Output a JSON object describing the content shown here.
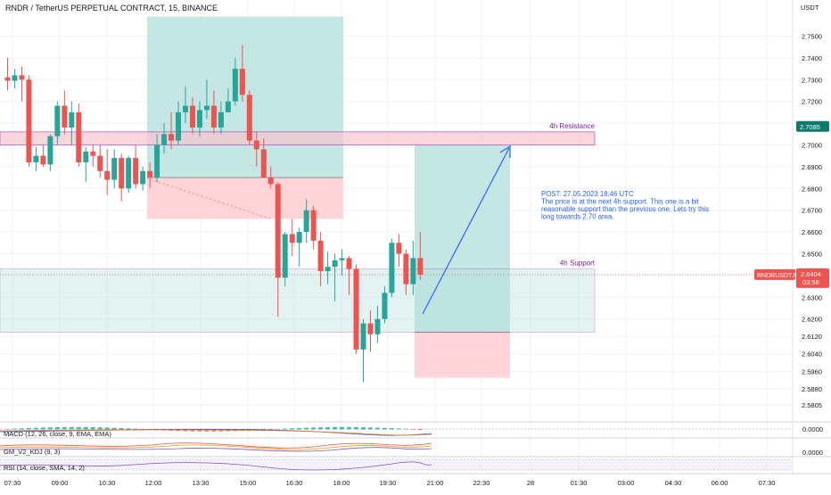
{
  "header": {
    "symbol": "RNDR / TetherUS PERPETUAL CONTRACT, 15, BINANCE"
  },
  "axis": {
    "currency": "USDT",
    "price_ticks": [
      "2.7500",
      "2.7400",
      "2.7300",
      "2.7200",
      "2.7100",
      "2.7000",
      "2.6900",
      "2.6800",
      "2.6700",
      "2.6600",
      "2.6500",
      "2.6400",
      "2.6300",
      "2.6200",
      "2.6120",
      "2.6040",
      "2.5960",
      "2.5880",
      "2.5805"
    ],
    "time_ticks": [
      "07:30",
      "09:00",
      "10:30",
      "12:00",
      "13:30",
      "15:00",
      "16:30",
      "18:00",
      "19:30",
      "21:00",
      "22:30",
      "28",
      "01:30",
      "03:00",
      "04:30",
      "06:00",
      "07:30"
    ]
  },
  "labels": {
    "resistance": "4h Resistance",
    "support": "4h Support",
    "resistance_price": "2.7085",
    "ticker_tag": "RNDRUSDT.P",
    "last_price": "2.6404",
    "countdown": "03:58",
    "post": [
      "POST: 27.05.2023 18:46 UTC",
      "The price is at the next 4h support. This one is a bit",
      "reasonable support than the previous one. Lets try this",
      "long towards 2.70 area."
    ]
  },
  "indicators": {
    "macd": {
      "label": "MACD (12, 26, close, 9, EMA, EMA)",
      "value": "0.0000"
    },
    "kdj": {
      "label": "GM_V2_KDJ (9, 3)",
      "value": "0.0000"
    },
    "rsi": {
      "label": "RSI (14, close, SMA, 14, 2)"
    }
  },
  "colors": {
    "up": "#26a69a",
    "down": "#ef5350",
    "zone_fill": "#f7c6cc",
    "zone_border": "#9c27b0",
    "profit": "#b2dfdb",
    "loss": "#ffcdd2",
    "arrow": "#2962ff"
  },
  "chart_data": {
    "type": "candlestick",
    "symbol": "RNDR / TetherUS PERPETUAL CONTRACT",
    "interval": "15",
    "ylim": [
      2.5805,
      2.76
    ],
    "zones": [
      {
        "name": "4h Resistance",
        "low": 2.7,
        "high": 2.706
      },
      {
        "name": "4h Support",
        "low": 2.614,
        "high": 2.643
      }
    ],
    "positions": [
      {
        "side": "long",
        "entry": 2.685,
        "target": 2.759,
        "stop": 2.666
      },
      {
        "side": "long",
        "entry": 2.614,
        "target": 2.7,
        "stop": 2.593
      }
    ],
    "last_price": 2.6404,
    "candles": [
      {
        "o": 2.731,
        "h": 2.74,
        "l": 2.725,
        "c": 2.7295
      },
      {
        "o": 2.7295,
        "h": 2.735,
        "l": 2.726,
        "c": 2.732
      },
      {
        "o": 2.732,
        "h": 2.736,
        "l": 2.72,
        "c": 2.73
      },
      {
        "o": 2.73,
        "h": 2.732,
        "l": 2.69,
        "c": 2.692
      },
      {
        "o": 2.692,
        "h": 2.699,
        "l": 2.688,
        "c": 2.695
      },
      {
        "o": 2.695,
        "h": 2.7,
        "l": 2.69,
        "c": 2.691
      },
      {
        "o": 2.691,
        "h": 2.705,
        "l": 2.688,
        "c": 2.704
      },
      {
        "o": 2.704,
        "h": 2.72,
        "l": 2.7,
        "c": 2.718
      },
      {
        "o": 2.718,
        "h": 2.725,
        "l": 2.705,
        "c": 2.708
      },
      {
        "o": 2.708,
        "h": 2.72,
        "l": 2.7,
        "c": 2.715
      },
      {
        "o": 2.715,
        "h": 2.719,
        "l": 2.69,
        "c": 2.692
      },
      {
        "o": 2.692,
        "h": 2.699,
        "l": 2.683,
        "c": 2.697
      },
      {
        "o": 2.697,
        "h": 2.7,
        "l": 2.69,
        "c": 2.695
      },
      {
        "o": 2.695,
        "h": 2.7,
        "l": 2.685,
        "c": 2.688
      },
      {
        "o": 2.688,
        "h": 2.698,
        "l": 2.677,
        "c": 2.684
      },
      {
        "o": 2.684,
        "h": 2.698,
        "l": 2.68,
        "c": 2.694
      },
      {
        "o": 2.694,
        "h": 2.696,
        "l": 2.674,
        "c": 2.68
      },
      {
        "o": 2.68,
        "h": 2.695,
        "l": 2.678,
        "c": 2.694
      },
      {
        "o": 2.694,
        "h": 2.7,
        "l": 2.68,
        "c": 2.682
      },
      {
        "o": 2.682,
        "h": 2.69,
        "l": 2.679,
        "c": 2.688
      },
      {
        "o": 2.688,
        "h": 2.692,
        "l": 2.68,
        "c": 2.685
      },
      {
        "o": 2.685,
        "h": 2.705,
        "l": 2.683,
        "c": 2.7
      },
      {
        "o": 2.7,
        "h": 2.71,
        "l": 2.696,
        "c": 2.705
      },
      {
        "o": 2.705,
        "h": 2.715,
        "l": 2.698,
        "c": 2.702
      },
      {
        "o": 2.702,
        "h": 2.72,
        "l": 2.7,
        "c": 2.715
      },
      {
        "o": 2.715,
        "h": 2.727,
        "l": 2.71,
        "c": 2.718
      },
      {
        "o": 2.718,
        "h": 2.722,
        "l": 2.705,
        "c": 2.708
      },
      {
        "o": 2.708,
        "h": 2.72,
        "l": 2.704,
        "c": 2.716
      },
      {
        "o": 2.716,
        "h": 2.73,
        "l": 2.712,
        "c": 2.718
      },
      {
        "o": 2.718,
        "h": 2.725,
        "l": 2.705,
        "c": 2.708
      },
      {
        "o": 2.708,
        "h": 2.72,
        "l": 2.705,
        "c": 2.715
      },
      {
        "o": 2.715,
        "h": 2.726,
        "l": 2.715,
        "c": 2.72
      },
      {
        "o": 2.72,
        "h": 2.74,
        "l": 2.718,
        "c": 2.735
      },
      {
        "o": 2.735,
        "h": 2.746,
        "l": 2.72,
        "c": 2.723
      },
      {
        "o": 2.723,
        "h": 2.725,
        "l": 2.7,
        "c": 2.702
      },
      {
        "o": 2.702,
        "h": 2.706,
        "l": 2.69,
        "c": 2.698
      },
      {
        "o": 2.698,
        "h": 2.703,
        "l": 2.685,
        "c": 2.685
      },
      {
        "o": 2.685,
        "h": 2.69,
        "l": 2.68,
        "c": 2.682
      },
      {
        "o": 2.682,
        "h": 2.683,
        "l": 2.621,
        "c": 2.639
      },
      {
        "o": 2.639,
        "h": 2.66,
        "l": 2.635,
        "c": 2.659
      },
      {
        "o": 2.659,
        "h": 2.666,
        "l": 2.649,
        "c": 2.655
      },
      {
        "o": 2.655,
        "h": 2.662,
        "l": 2.644,
        "c": 2.66
      },
      {
        "o": 2.66,
        "h": 2.675,
        "l": 2.655,
        "c": 2.67
      },
      {
        "o": 2.67,
        "h": 2.672,
        "l": 2.652,
        "c": 2.656
      },
      {
        "o": 2.656,
        "h": 2.66,
        "l": 2.635,
        "c": 2.642
      },
      {
        "o": 2.642,
        "h": 2.651,
        "l": 2.636,
        "c": 2.644
      },
      {
        "o": 2.644,
        "h": 2.65,
        "l": 2.628,
        "c": 2.647
      },
      {
        "o": 2.647,
        "h": 2.652,
        "l": 2.64,
        "c": 2.648
      },
      {
        "o": 2.648,
        "h": 2.649,
        "l": 2.631,
        "c": 2.643
      },
      {
        "o": 2.643,
        "h": 2.645,
        "l": 2.604,
        "c": 2.606
      },
      {
        "o": 2.606,
        "h": 2.62,
        "l": 2.591,
        "c": 2.618
      },
      {
        "o": 2.618,
        "h": 2.624,
        "l": 2.605,
        "c": 2.613
      },
      {
        "o": 2.613,
        "h": 2.626,
        "l": 2.609,
        "c": 2.62
      },
      {
        "o": 2.62,
        "h": 2.635,
        "l": 2.618,
        "c": 2.632
      },
      {
        "o": 2.632,
        "h": 2.657,
        "l": 2.63,
        "c": 2.655
      },
      {
        "o": 2.655,
        "h": 2.659,
        "l": 2.644,
        "c": 2.65
      },
      {
        "o": 2.65,
        "h": 2.652,
        "l": 2.631,
        "c": 2.636
      },
      {
        "o": 2.636,
        "h": 2.656,
        "l": 2.631,
        "c": 2.648
      },
      {
        "o": 2.648,
        "h": 2.66,
        "l": 2.638,
        "c": 2.6404
      }
    ]
  }
}
